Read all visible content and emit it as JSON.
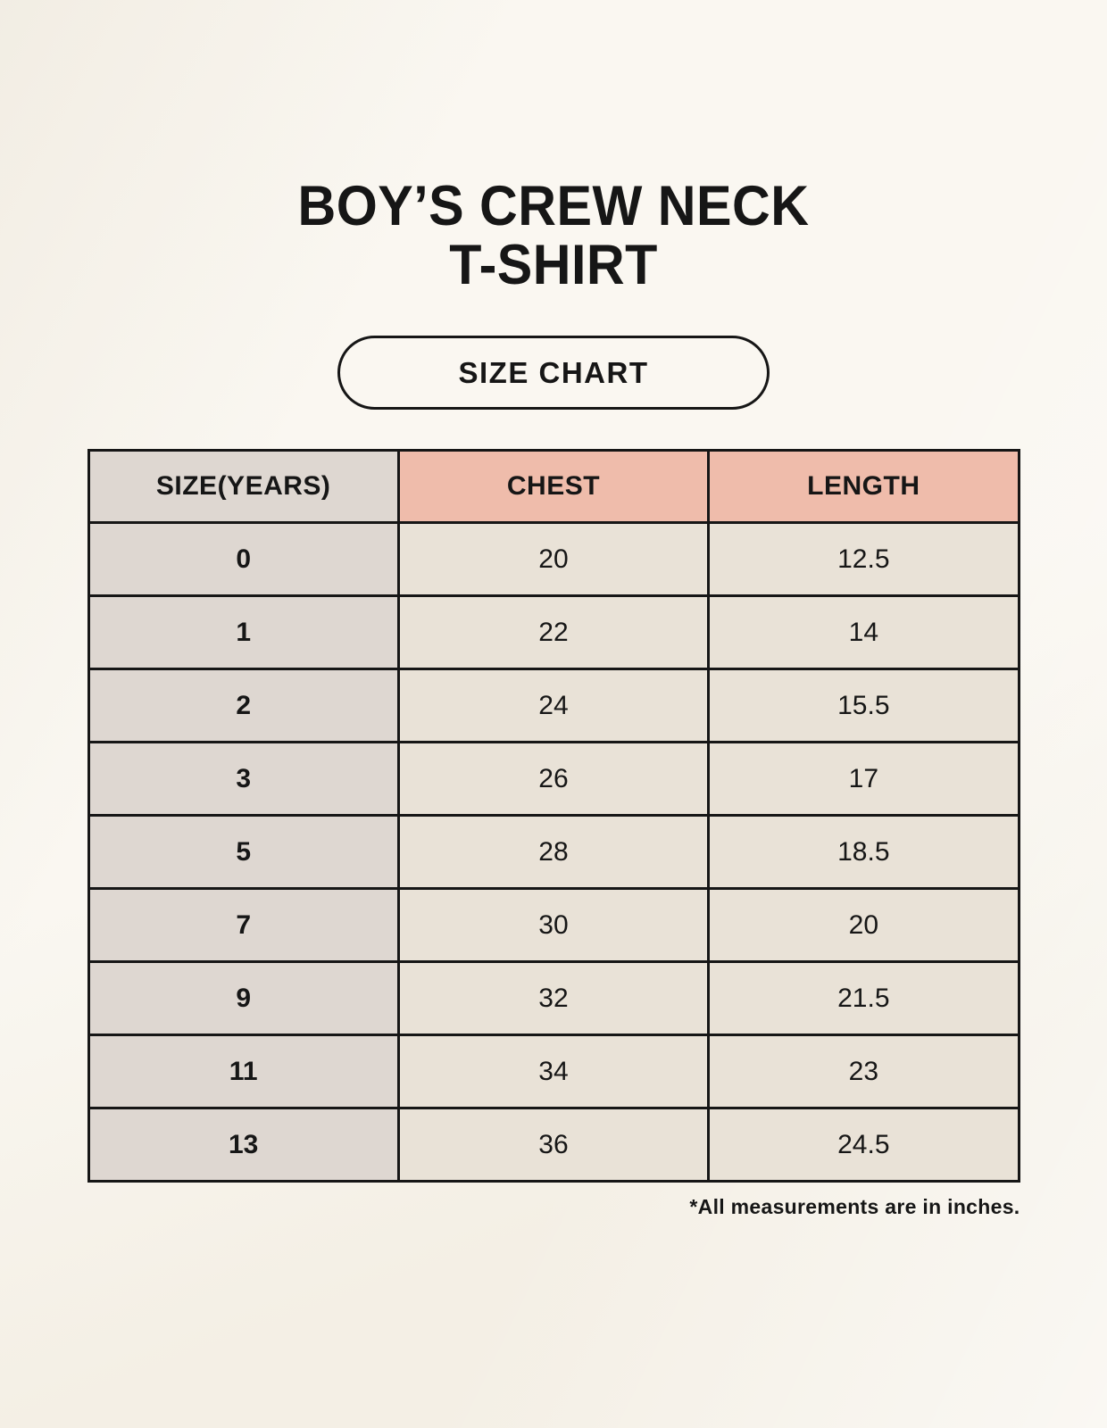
{
  "header": {
    "title_line1": "BOY’S CREW NECK",
    "title_line2": "T-SHIRT",
    "badge_label": "SIZE CHART"
  },
  "chart_data": {
    "type": "table",
    "title": "BOY’S CREW NECK T-SHIRT",
    "columns": [
      "SIZE(YEARS)",
      "CHEST",
      "LENGTH"
    ],
    "rows": [
      [
        "0",
        "20",
        "12.5"
      ],
      [
        "1",
        "22",
        "14"
      ],
      [
        "2",
        "24",
        "15.5"
      ],
      [
        "3",
        "26",
        "17"
      ],
      [
        "5",
        "28",
        "18.5"
      ],
      [
        "7",
        "30",
        "20"
      ],
      [
        "9",
        "32",
        "21.5"
      ],
      [
        "11",
        "34",
        "23"
      ],
      [
        "13",
        "36",
        "24.5"
      ]
    ],
    "units_note": "*All measurements are in inches."
  },
  "footer": {
    "note": "*All measurements are in inches."
  },
  "colors": {
    "background": "#f7f3ea",
    "text": "#161616",
    "table_border": "#161616",
    "header_accent": "#efbcab",
    "size_column_bg": "#ded7d1",
    "value_cell_bg": "#e9e2d7"
  }
}
